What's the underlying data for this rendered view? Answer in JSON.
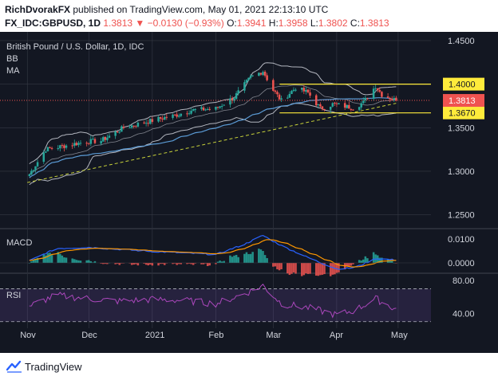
{
  "header": {
    "author": "RichDvorakFX",
    "published_text": "published on TradingView.com, May 01, 2021 22:13:10 UTC",
    "symbol_line": "FX_IDC:GBPUSD, 1D",
    "last": "1.3813",
    "change_arrow": "▼",
    "change": "−0.0130 (−0.93%)",
    "o_label": "O:",
    "o": "1.3941",
    "h_label": "H:",
    "h": "1.3958",
    "l_label": "L:",
    "l": "1.3802",
    "c_label": "C:",
    "c": "1.3813"
  },
  "legend": {
    "title": "British Pound / U.S. Dollar, 1D, IDC",
    "bb": "BB",
    "ma": "MA"
  },
  "footer": {
    "brand": "TradingView"
  },
  "colors": {
    "background": "#131722",
    "grid": "#363a45",
    "up": "#26a69a",
    "down": "#ef5350",
    "bb": "#b2b5be",
    "ma": "#5b9bd5",
    "trendline": "#c8d23a",
    "level_box": "#ffeb3b",
    "macd": "#2962ff",
    "signal": "#ff9800",
    "rsi": "#ab47bc",
    "rsi_band": "#7e57c2"
  },
  "chart_data": [
    {
      "type": "candlestick",
      "title": "British Pound / U.S. Dollar, 1D, IDC",
      "ylim": [
        1.235,
        1.46
      ],
      "yticks": [
        "1.4500",
        "1.4000",
        "1.3500",
        "1.3000",
        "1.2500"
      ],
      "ytick_values": [
        1.45,
        1.4,
        1.35,
        1.3,
        1.25
      ],
      "xtick_labels": [
        "Nov",
        "Dec",
        "2021",
        "Feb",
        "Mar",
        "Apr",
        "May"
      ],
      "anchor_dates": [
        "2020-11-01",
        "2020-11-10",
        "2020-11-30",
        "2020-12-07",
        "2020-12-18",
        "2021-01-04",
        "2021-01-12",
        "2021-01-20",
        "2021-02-01",
        "2021-02-10",
        "2021-02-18",
        "2021-02-24",
        "2021-03-01",
        "2021-03-05",
        "2021-03-12",
        "2021-03-18",
        "2021-03-24",
        "2021-03-30",
        "2021-04-09",
        "2021-04-14",
        "2021-04-20",
        "2021-04-23",
        "2021-04-30"
      ],
      "anchor_closes": [
        1.293,
        1.325,
        1.334,
        1.335,
        1.35,
        1.36,
        1.364,
        1.37,
        1.372,
        1.385,
        1.408,
        1.415,
        1.393,
        1.381,
        1.396,
        1.39,
        1.372,
        1.377,
        1.373,
        1.379,
        1.398,
        1.388,
        1.3813
      ],
      "levels": [
        {
          "value": 1.4,
          "label": "1.4000"
        },
        {
          "value": 1.367,
          "label": "1.3670"
        }
      ],
      "last_price": {
        "value": 1.3813,
        "label": "1.3813"
      },
      "trendline": {
        "from": [
          "2020-11-01",
          1.287
        ],
        "to": [
          "2021-04-30",
          1.378
        ]
      },
      "indicators": [
        "BB",
        "MA"
      ]
    },
    {
      "type": "line",
      "name": "MACD",
      "ylim": [
        -0.004,
        0.014
      ],
      "yticks": [
        "0.0100",
        "0.0000"
      ],
      "ytick_values": [
        0.01,
        0.0
      ],
      "anchor_dates": [
        "2020-11-01",
        "2020-11-15",
        "2020-12-01",
        "2020-12-15",
        "2021-01-01",
        "2021-01-15",
        "2021-02-01",
        "2021-02-15",
        "2021-02-24",
        "2021-03-05",
        "2021-03-20",
        "2021-04-01",
        "2021-04-10",
        "2021-04-20",
        "2021-04-30"
      ],
      "macd": [
        0.0005,
        0.006,
        0.0065,
        0.0057,
        0.0048,
        0.0042,
        0.0035,
        0.0078,
        0.0115,
        0.0072,
        0.0015,
        -0.0025,
        -0.002,
        0.0018,
        0.0012
      ]
    },
    {
      "type": "line",
      "name": "RSI",
      "ylim": [
        22,
        88
      ],
      "yticks": [
        "80.00",
        "40.00"
      ],
      "ytick_values": [
        80,
        40
      ],
      "band": [
        70,
        30
      ],
      "anchor_dates": [
        "2020-11-01",
        "2020-11-15",
        "2020-12-01",
        "2020-12-15",
        "2021-01-01",
        "2021-01-15",
        "2021-02-01",
        "2021-02-15",
        "2021-02-24",
        "2021-03-05",
        "2021-03-20",
        "2021-04-01",
        "2021-04-10",
        "2021-04-20",
        "2021-04-30"
      ],
      "values": [
        48,
        62,
        58,
        55,
        57,
        56,
        52,
        64,
        74,
        52,
        46,
        38,
        44,
        58,
        45
      ]
    }
  ]
}
